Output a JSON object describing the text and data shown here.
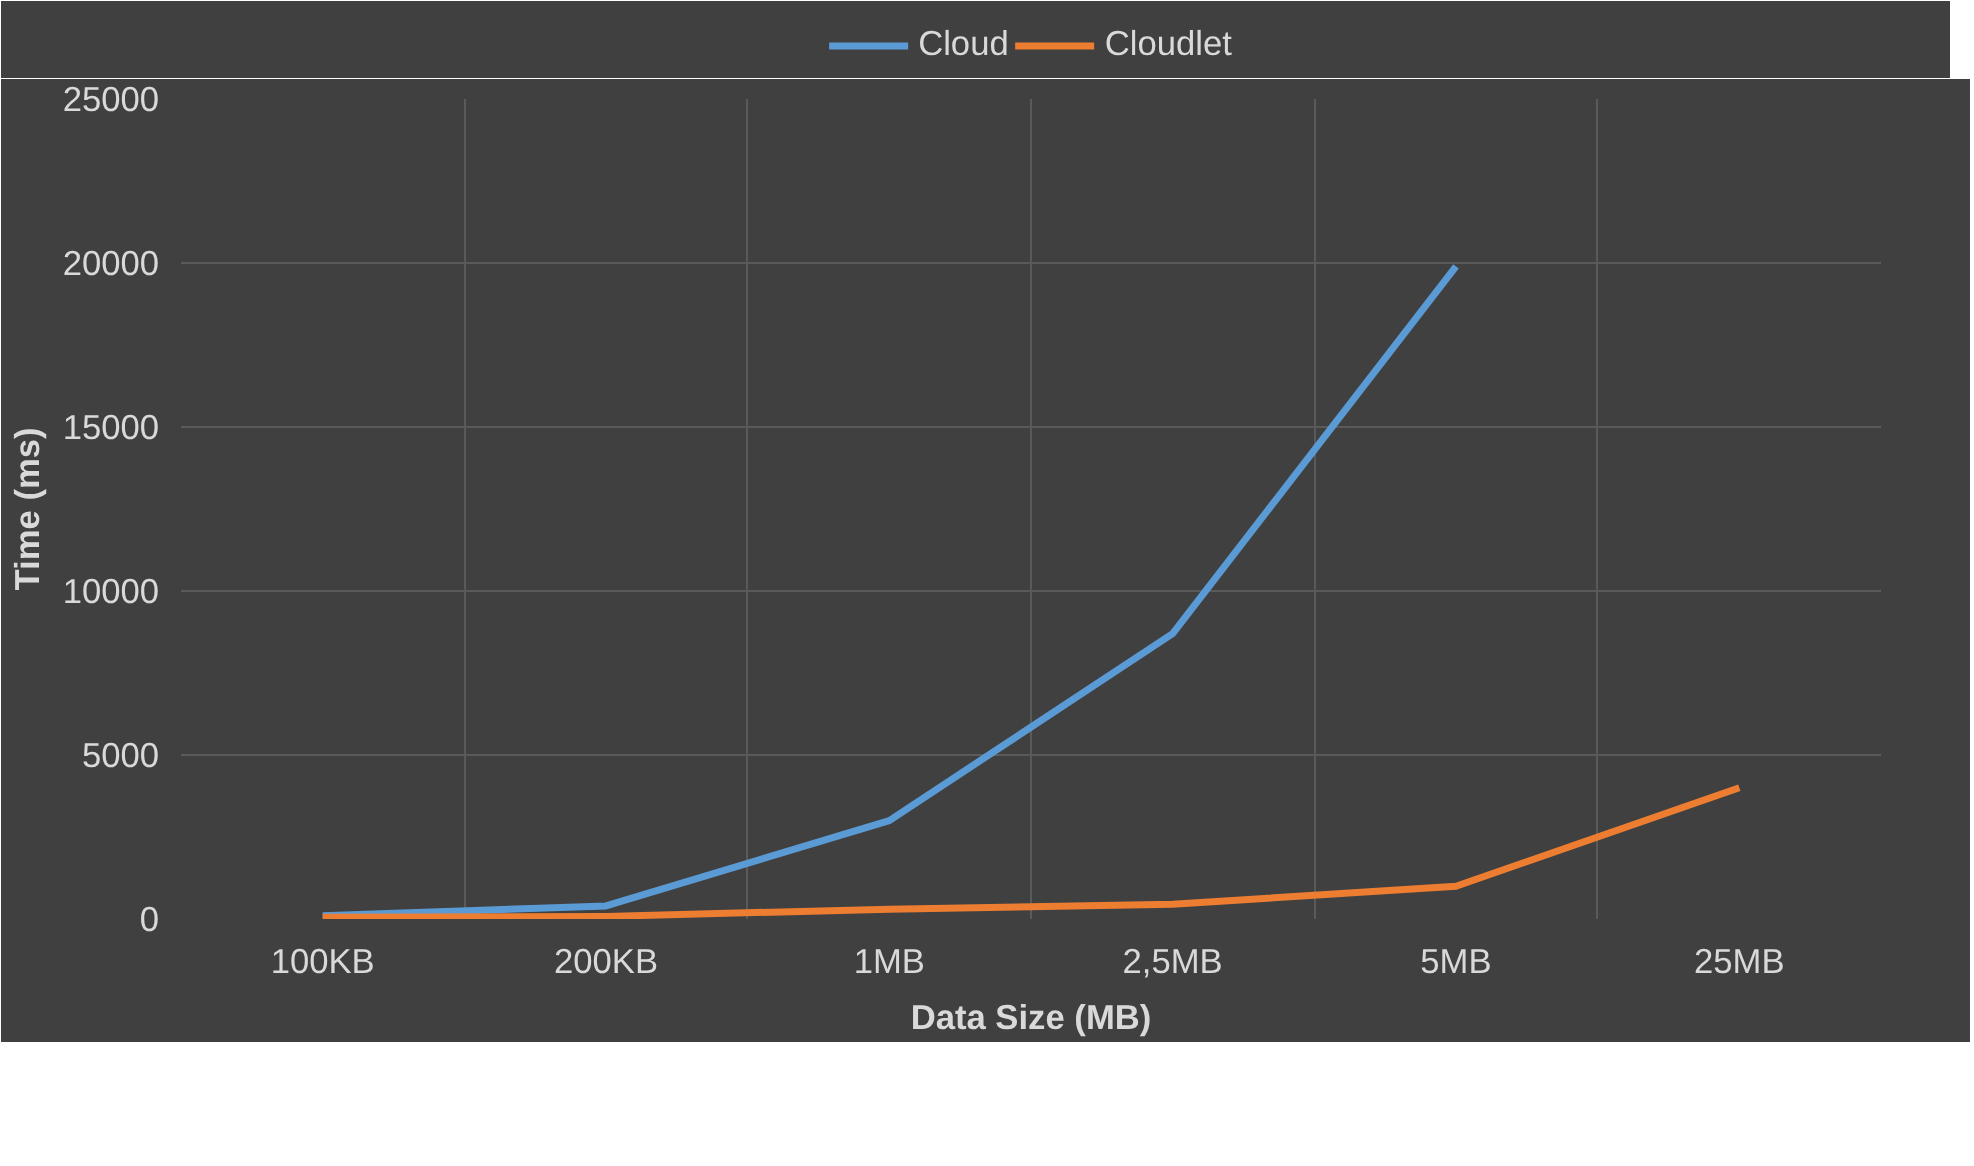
{
  "chart_data": {
    "type": "line",
    "xlabel": "Data Size (MB)",
    "ylabel": "Time (ms)",
    "categories": [
      "100KB",
      "200KB",
      "1MB",
      "2,5MB",
      "5MB",
      "25MB"
    ],
    "series": [
      {
        "name": "Cloud",
        "color": "#5b9bd5",
        "values": [
          100,
          400,
          3000,
          8700,
          19900,
          null
        ]
      },
      {
        "name": "Cloudlet",
        "color": "#ed7d31",
        "values": [
          50,
          80,
          300,
          450,
          1000,
          4000
        ]
      }
    ],
    "ylim": [
      0,
      25000
    ],
    "yticks": [
      0,
      5000,
      10000,
      15000,
      20000,
      25000
    ],
    "grid": true,
    "legend": "top",
    "marker": "none",
    "line_style": "solid"
  }
}
